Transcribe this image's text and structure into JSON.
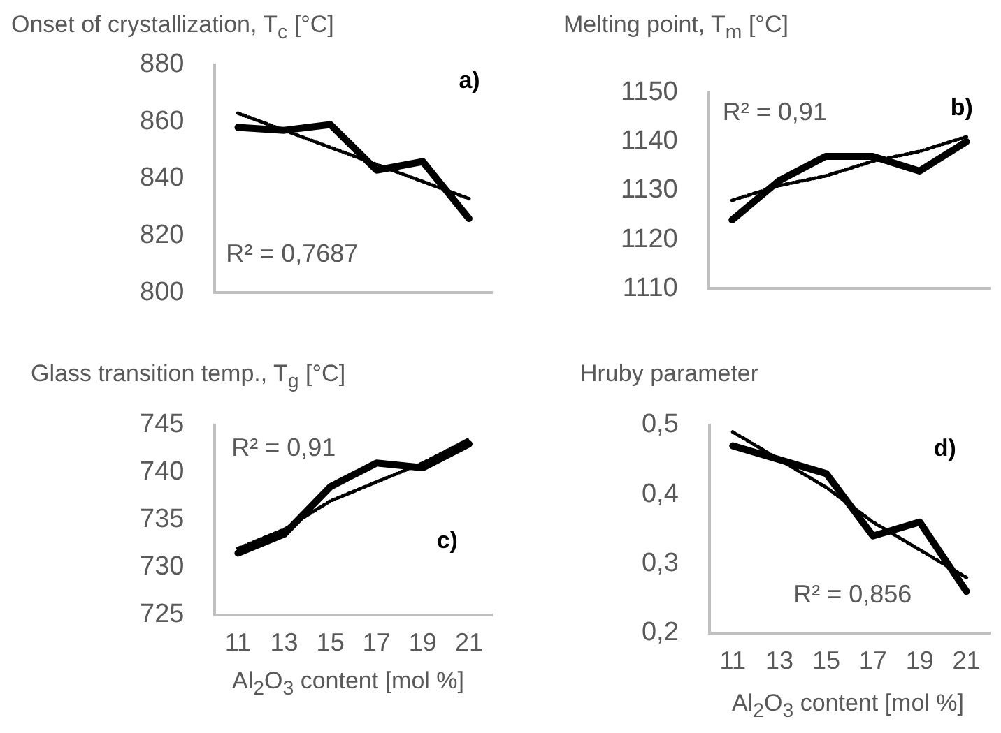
{
  "chart_data": [
    {
      "type": "line",
      "title": "Onset of crystallization, T$_{c}$ [°C]",
      "categories": [
        "11",
        "13",
        "15",
        "17",
        "19",
        "21"
      ],
      "series": [
        {
          "color": "#000000",
          "values": [
            858,
            857,
            859,
            843,
            846,
            826
          ],
          "line_style": "solid"
        },
        {
          "type": "line",
          "color": "#000000",
          "values": [
            863,
            857,
            851,
            845,
            839,
            833
          ],
          "line_style": "dotted"
        }
      ],
      "ylim": [
        800,
        880
      ],
      "yticks": [
        800,
        820,
        840,
        860,
        880
      ],
      "grid": false,
      "legend": false,
      "marker": "none",
      "tick_labels": "y",
      "annotations": [
        "a)",
        "R² = 0,7687"
      ]
    },
    {
      "type": "line",
      "title": "Melting point, T$_{m}$ [°C]",
      "categories": [
        "11",
        "13",
        "15",
        "17",
        "19",
        "21"
      ],
      "series": [
        {
          "color": "#000000",
          "values": [
            1124,
            1132,
            1137,
            1137,
            1134,
            1140
          ],
          "line_style": "solid"
        },
        {
          "type": "line",
          "color": "#000000",
          "values": [
            1128,
            1131,
            1133,
            1136,
            1138,
            1141
          ],
          "line_style": "dotted"
        }
      ],
      "ylim": [
        1110,
        1150
      ],
      "yticks": [
        1110,
        1120,
        1130,
        1140,
        1150
      ],
      "grid": false,
      "legend": false,
      "marker": "none",
      "tick_labels": "y",
      "annotations": [
        "R² = 0,91",
        "b)"
      ]
    },
    {
      "type": "line",
      "title": "Glass transition temp., T$_{g}$ [°C]",
      "xlabel": "Al$_{2}$O$_{3}$ content [mol %]",
      "categories": [
        "11",
        "13",
        "15",
        "17",
        "19",
        "21"
      ],
      "series": [
        {
          "color": "#000000",
          "values": [
            731.5,
            733.5,
            738.5,
            741,
            740.5,
            743
          ],
          "line_style": "solid"
        },
        {
          "type": "line",
          "color": "#000000",
          "values": [
            732,
            734,
            737,
            739,
            741,
            743.5
          ],
          "line_style": "dotted"
        }
      ],
      "ylim": [
        725,
        745
      ],
      "yticks": [
        725,
        730,
        735,
        740,
        745
      ],
      "grid": false,
      "legend": false,
      "marker": "none",
      "annotations": [
        "R² = 0,91",
        "c)"
      ]
    },
    {
      "type": "line",
      "title": "Hruby parameter",
      "xlabel": "Al$_{2}$O$_{3}$ content [mol %]",
      "categories": [
        "11",
        "13",
        "15",
        "17",
        "19",
        "21"
      ],
      "series": [
        {
          "color": "#000000",
          "values": [
            0.47,
            0.45,
            0.43,
            0.34,
            0.36,
            0.26
          ],
          "line_style": "solid"
        },
        {
          "type": "line",
          "color": "#000000",
          "values": [
            0.49,
            0.45,
            0.41,
            0.36,
            0.32,
            0.28
          ],
          "line_style": "dotted"
        }
      ],
      "ylim": [
        0.2,
        0.5
      ],
      "yticks": [
        {
          "value": 0.2,
          "label": "0,2"
        },
        {
          "value": 0.3,
          "label": "0,3"
        },
        {
          "value": 0.4,
          "label": "0,4"
        },
        {
          "value": 0.5,
          "label": "0,5"
        }
      ],
      "grid": false,
      "legend": false,
      "marker": "none",
      "annotations": [
        "d)",
        "R² = 0,856"
      ]
    }
  ]
}
